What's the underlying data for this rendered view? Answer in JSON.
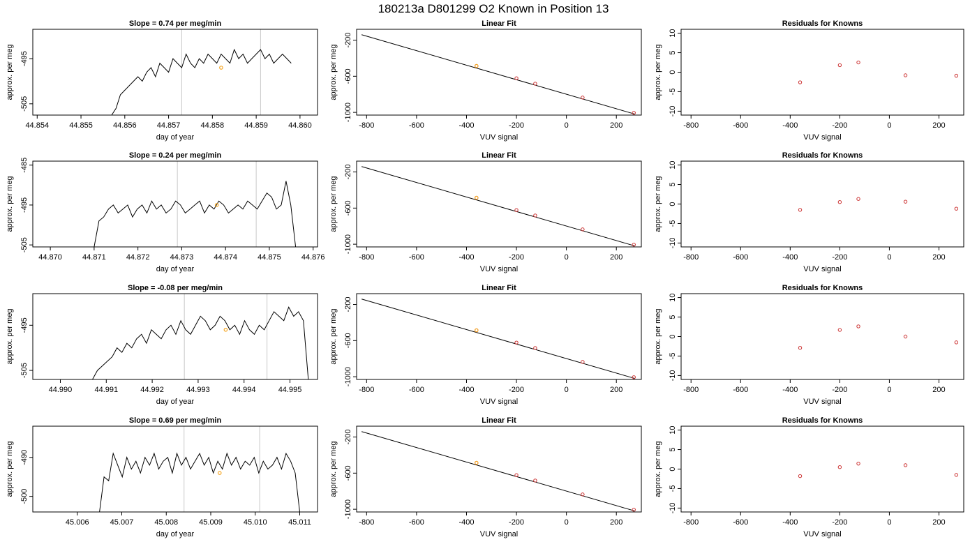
{
  "figure": {
    "title": "180213a     D801299   O2 Known in Position  13"
  },
  "chart_data": [
    {
      "type": "line",
      "title": "Slope =  0.74  per meg/min",
      "xlabel": "day of year",
      "ylabel": "approx. per meg",
      "xlim": [
        44.8539,
        44.8604
      ],
      "ylim": [
        -507.5,
        -488.5
      ],
      "xticks": [
        "44.854",
        "44.855",
        "44.856",
        "44.857",
        "44.858",
        "44.859",
        "44.860"
      ],
      "yticks": [
        "-495",
        "-505"
      ],
      "vlines": [
        44.8573,
        44.8591
      ],
      "highlight": {
        "x": 44.8582,
        "y": -497
      },
      "series": [
        {
          "x_start": 44.8557,
          "x_end": 44.8598,
          "y_start": -507.5,
          "y_end": -507.5,
          "values": [
            -507.5,
            -506,
            -503,
            -502,
            -501,
            -500,
            -499,
            -500,
            -498,
            -497,
            -499,
            -496,
            -497,
            -498,
            -495,
            -496,
            -497,
            -494,
            -496,
            -497,
            -495,
            -496,
            -494,
            -495,
            -496,
            -494,
            -495,
            -496,
            -493,
            -495,
            -494,
            -496,
            -495,
            -494,
            -493,
            -495,
            -494,
            -496,
            -495,
            -494,
            -495,
            -496
          ]
        }
      ]
    },
    {
      "type": "line",
      "title": "Linear Fit",
      "xlabel": "VUV signal",
      "ylabel": "approx. per meg",
      "xlim": [
        -840,
        300
      ],
      "ylim": [
        -1030,
        -80
      ],
      "xticks": [
        "-800",
        "-600",
        "-400",
        "-200",
        "0",
        "200"
      ],
      "yticks": [
        "-200",
        "-600",
        "-1000"
      ],
      "line": {
        "x": [
          -820,
          275
        ],
        "y": [
          -140,
          -1020
        ]
      },
      "points": {
        "x": [
          -360,
          -200,
          -125,
          65,
          270
        ],
        "y": [
          -486,
          -622,
          -682,
          -836,
          -1005
        ]
      },
      "highlight": {
        "x": -360,
        "y": -486
      }
    },
    {
      "type": "scatter",
      "title": "Residuals for Knowns",
      "xlabel": "VUV signal",
      "ylabel": "approx. per meg",
      "xlim": [
        -840,
        300
      ],
      "ylim": [
        -11,
        11
      ],
      "xticks": [
        "-800",
        "-600",
        "-400",
        "-200",
        "0",
        "200"
      ],
      "yticks": [
        "10",
        "5",
        "0",
        "-5",
        "-10"
      ],
      "points": {
        "x": [
          -360,
          -200,
          -125,
          65,
          270
        ],
        "y": [
          -2.6,
          1.8,
          2.5,
          -0.8,
          -0.9
        ]
      }
    },
    {
      "type": "line",
      "title": "Slope =  0.24  per meg/min",
      "xlabel": "day of year",
      "ylabel": "approx. per meg",
      "xlim": [
        44.8696,
        44.8761
      ],
      "ylim": [
        -505.5,
        -484
      ],
      "xticks": [
        "44.870",
        "44.871",
        "44.872",
        "44.873",
        "44.874",
        "44.875",
        "44.876"
      ],
      "yticks": [
        "-485",
        "-495",
        "-505"
      ],
      "vlines": [
        44.8729,
        44.8747
      ],
      "highlight": {
        "x": 44.8738,
        "y": -495
      },
      "series": [
        {
          "x_start": 44.871,
          "x_end": 44.8756,
          "values": [
            -505.5,
            -499,
            -498,
            -496,
            -495,
            -497,
            -496,
            -495,
            -498,
            -496,
            -495,
            -497,
            -494,
            -496,
            -495,
            -497,
            -496,
            -494,
            -495,
            -497,
            -496,
            -495,
            -494,
            -497,
            -495,
            -496,
            -494,
            -495,
            -497,
            -496,
            -495,
            -496,
            -494,
            -495,
            -496,
            -494,
            -492,
            -493,
            -496,
            -495,
            -489,
            -495,
            -505.5
          ]
        }
      ]
    },
    {
      "type": "line",
      "title": "Linear Fit",
      "xlabel": "VUV signal",
      "ylabel": "approx. per meg",
      "xlim": [
        -840,
        300
      ],
      "ylim": [
        -1030,
        -80
      ],
      "xticks": [
        "-800",
        "-600",
        "-400",
        "-200",
        "0",
        "200"
      ],
      "yticks": [
        "-200",
        "-600",
        "-1000"
      ],
      "line": {
        "x": [
          -820,
          275
        ],
        "y": [
          -140,
          -1020
        ]
      },
      "points": {
        "x": [
          -360,
          -200,
          -125,
          65,
          270
        ],
        "y": [
          -486,
          -622,
          -682,
          -836,
          -1005
        ]
      },
      "highlight": {
        "x": -360,
        "y": -486
      }
    },
    {
      "type": "scatter",
      "title": "Residuals for Knowns",
      "xlabel": "VUV signal",
      "ylabel": "approx. per meg",
      "xlim": [
        -840,
        300
      ],
      "ylim": [
        -11,
        11
      ],
      "xticks": [
        "-800",
        "-600",
        "-400",
        "-200",
        "0",
        "200"
      ],
      "yticks": [
        "10",
        "5",
        "0",
        "-5",
        "-10"
      ],
      "points": {
        "x": [
          -360,
          -200,
          -125,
          65,
          270
        ],
        "y": [
          -1.5,
          0.5,
          1.3,
          0.6,
          -1.2
        ]
      }
    },
    {
      "type": "line",
      "title": "Slope =  -0.08  per meg/min",
      "xlabel": "day of year",
      "ylabel": "approx. per meg",
      "xlim": [
        44.9894,
        44.9956
      ],
      "ylim": [
        -507,
        -488
      ],
      "xticks": [
        "44.990",
        "44.991",
        "44.992",
        "44.993",
        "44.994",
        "44.995"
      ],
      "yticks": [
        "-495",
        "-505"
      ],
      "vlines": [
        44.9927,
        44.9945
      ],
      "highlight": {
        "x": 44.9936,
        "y": -496
      },
      "series": [
        {
          "x_start": 44.9907,
          "x_end": 44.9954,
          "values": [
            -507,
            -505,
            -504,
            -503,
            -502,
            -500,
            -501,
            -499,
            -500,
            -498,
            -497,
            -499,
            -496,
            -497,
            -498,
            -496,
            -495,
            -497,
            -494,
            -496,
            -497,
            -495,
            -493,
            -494,
            -496,
            -495,
            -493,
            -494,
            -496,
            -495,
            -497,
            -494,
            -496,
            -497,
            -495,
            -496,
            -494,
            -492,
            -493,
            -494,
            -491,
            -493,
            -492,
            -494,
            -507
          ]
        }
      ]
    },
    {
      "type": "line",
      "title": "Linear Fit",
      "xlabel": "VUV signal",
      "ylabel": "approx. per meg",
      "xlim": [
        -840,
        300
      ],
      "ylim": [
        -1030,
        -80
      ],
      "xticks": [
        "-800",
        "-600",
        "-400",
        "-200",
        "0",
        "200"
      ],
      "yticks": [
        "-200",
        "-600",
        "-1000"
      ],
      "line": {
        "x": [
          -820,
          275
        ],
        "y": [
          -140,
          -1020
        ]
      },
      "points": {
        "x": [
          -360,
          -200,
          -125,
          65,
          270
        ],
        "y": [
          -486,
          -622,
          -682,
          -836,
          -1005
        ]
      },
      "highlight": {
        "x": -360,
        "y": -486
      }
    },
    {
      "type": "scatter",
      "title": "Residuals for Knowns",
      "xlabel": "VUV signal",
      "ylabel": "approx. per meg",
      "xlim": [
        -840,
        300
      ],
      "ylim": [
        -11,
        11
      ],
      "xticks": [
        "-800",
        "-600",
        "-400",
        "-200",
        "0",
        "200"
      ],
      "yticks": [
        "10",
        "5",
        "0",
        "-5",
        "-10"
      ],
      "points": {
        "x": [
          -360,
          -200,
          -125,
          65,
          270
        ],
        "y": [
          -2.9,
          1.7,
          2.6,
          0,
          -1.5
        ]
      }
    },
    {
      "type": "line",
      "title": "Slope =  0.69  per meg/min",
      "xlabel": "day of year",
      "ylabel": "approx. per meg",
      "xlim": [
        45.005,
        45.0114
      ],
      "ylim": [
        -504,
        -482
      ],
      "xticks": [
        "45.006",
        "45.007",
        "45.008",
        "45.009",
        "45.010",
        "45.011"
      ],
      "yticks": [
        "-490",
        "-500"
      ],
      "vlines": [
        45.0084,
        45.0101
      ],
      "highlight": {
        "x": 45.0092,
        "y": -494
      },
      "series": [
        {
          "x_start": 45.0065,
          "x_end": 45.011,
          "values": [
            -504,
            -495,
            -496,
            -489,
            -492,
            -495,
            -490,
            -493,
            -491,
            -494,
            -490,
            -492,
            -489,
            -493,
            -491,
            -490,
            -494,
            -489,
            -492,
            -490,
            -493,
            -491,
            -489,
            -492,
            -490,
            -494,
            -491,
            -493,
            -489,
            -492,
            -490,
            -493,
            -491,
            -492,
            -490,
            -494,
            -491,
            -493,
            -492,
            -490,
            -493,
            -489,
            -491,
            -494,
            -504
          ]
        }
      ]
    },
    {
      "type": "line",
      "title": "Linear Fit",
      "xlabel": "VUV signal",
      "ylabel": "approx. per meg",
      "xlim": [
        -840,
        300
      ],
      "ylim": [
        -1030,
        -80
      ],
      "xticks": [
        "-800",
        "-600",
        "-400",
        "-200",
        "0",
        "200"
      ],
      "yticks": [
        "-200",
        "-600",
        "-1000"
      ],
      "line": {
        "x": [
          -820,
          275
        ],
        "y": [
          -140,
          -1020
        ]
      },
      "points": {
        "x": [
          -360,
          -200,
          -125,
          65,
          270
        ],
        "y": [
          -486,
          -622,
          -682,
          -836,
          -1005
        ]
      },
      "highlight": {
        "x": -360,
        "y": -486
      }
    },
    {
      "type": "scatter",
      "title": "Residuals for Knowns",
      "xlabel": "VUV signal",
      "ylabel": "approx. per meg",
      "xlim": [
        -840,
        300
      ],
      "ylim": [
        -11,
        11
      ],
      "xticks": [
        "-800",
        "-600",
        "-400",
        "-200",
        "0",
        "200"
      ],
      "yticks": [
        "10",
        "5",
        "0",
        "-5",
        "-10"
      ],
      "points": {
        "x": [
          -360,
          -200,
          -125,
          65,
          270
        ],
        "y": [
          -1.8,
          0.5,
          1.4,
          1,
          -1.5
        ]
      }
    }
  ],
  "colors": {
    "points": "#cc3333",
    "highlight": "#f5a623",
    "vlines": "#c8c8c8",
    "line": "#000000",
    "axes": "#000000"
  }
}
